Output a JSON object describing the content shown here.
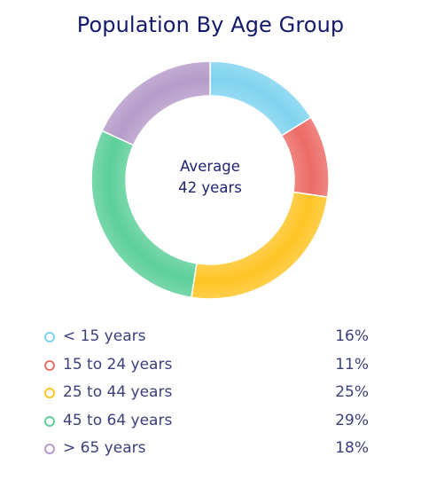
{
  "chart_data": {
    "type": "pie",
    "title": "Population By Age Group",
    "center_label": [
      "Average",
      "42 years"
    ],
    "categories": [
      "< 15 years",
      "15 to 24 years",
      "25 to 44 years",
      "45 to 64 years",
      "> 65 years"
    ],
    "values": [
      16,
      11,
      25,
      29,
      18
    ],
    "value_labels": [
      "16%",
      "11%",
      "25%",
      "29%",
      "18%"
    ],
    "colors": [
      "#7fd3ef",
      "#ec6b66",
      "#ffc425",
      "#5ccf98",
      "#b59bc9"
    ],
    "legend_position": "bottom"
  }
}
